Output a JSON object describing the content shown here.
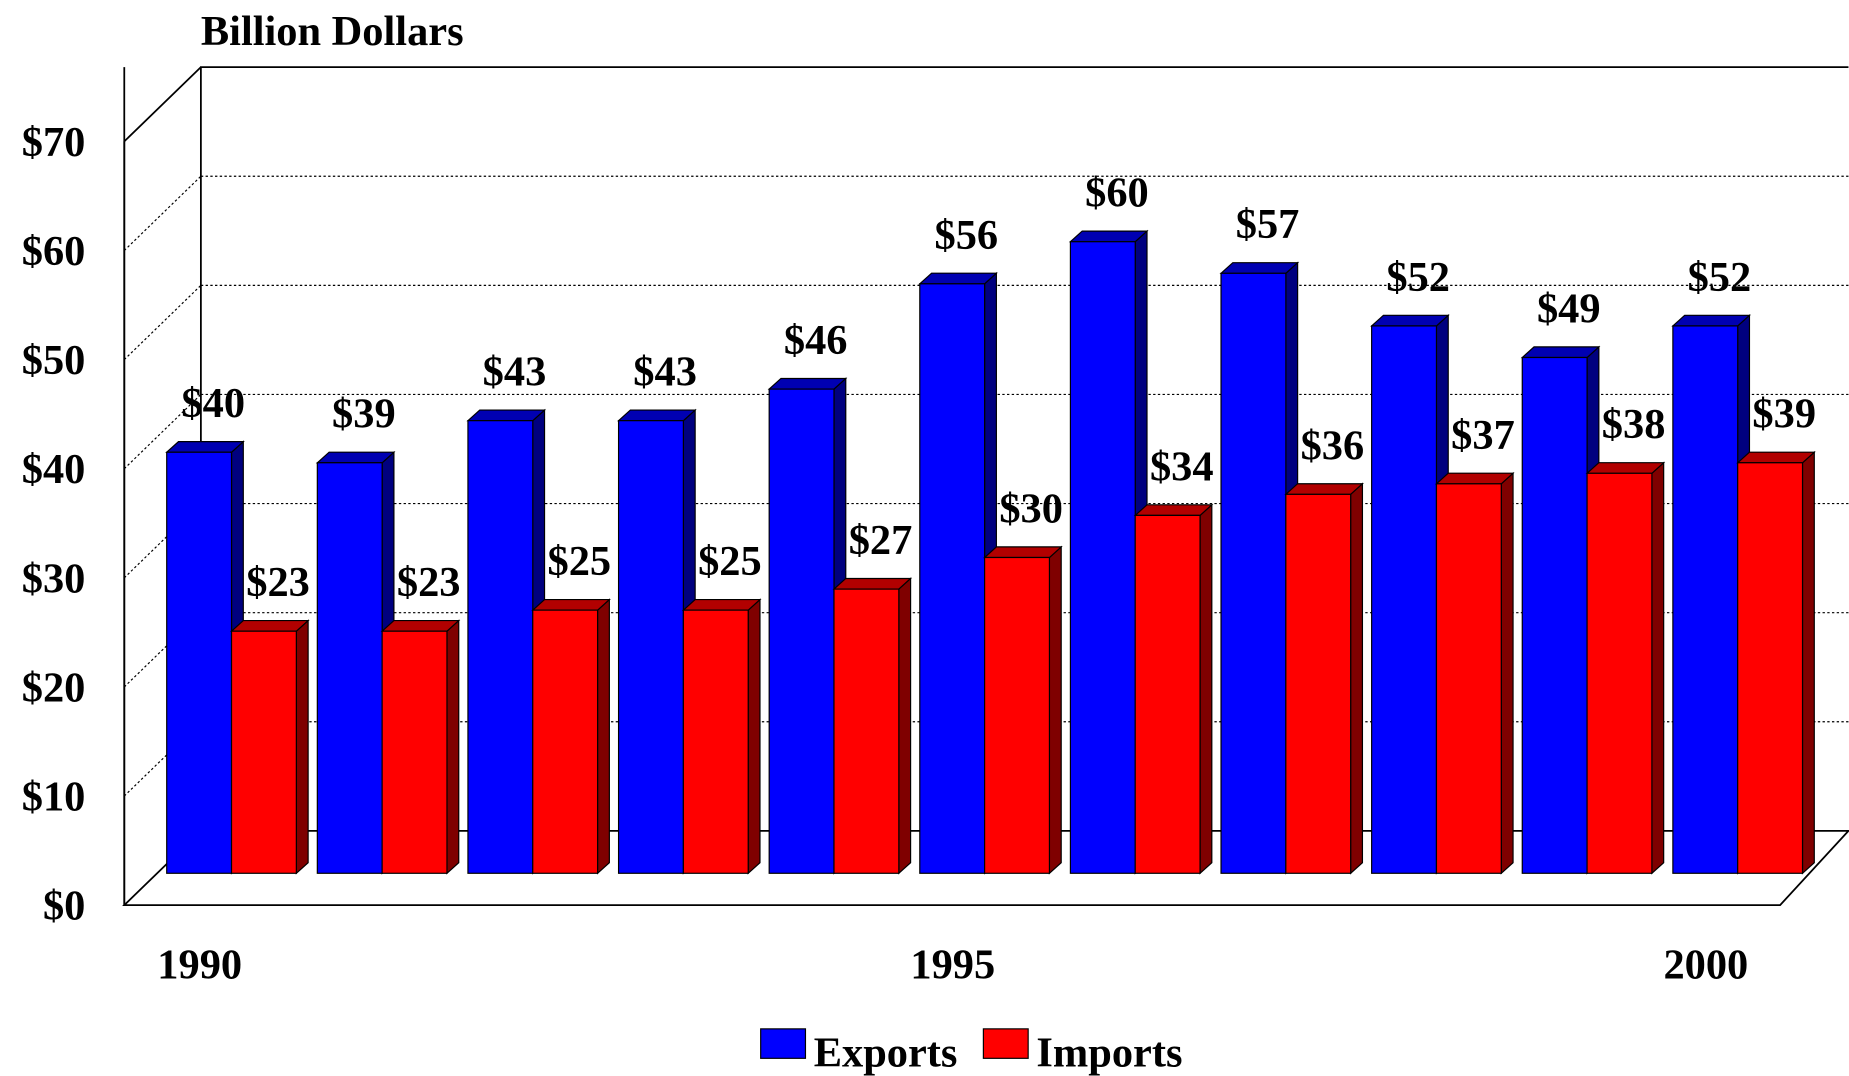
{
  "chart_data": {
    "type": "bar3d",
    "y_axis_label": "Billion Dollars",
    "categories": [
      "1990",
      null,
      null,
      null,
      null,
      "1995",
      null,
      null,
      null,
      null,
      "2000"
    ],
    "series": [
      {
        "name": "Exports",
        "color": "#0000ff",
        "values": [
          40,
          39,
          43,
          43,
          46,
          56,
          60,
          57,
          52,
          49,
          52
        ],
        "value_labels": [
          "$40",
          "$39",
          "$43",
          "$43",
          "$46",
          "$56",
          "$60",
          "$57",
          "$52",
          "$49",
          "$52"
        ]
      },
      {
        "name": "Imports",
        "color": "#ff0000",
        "values": [
          23,
          23,
          25,
          25,
          27,
          30,
          34,
          36,
          37,
          38,
          39
        ],
        "value_labels": [
          "$23",
          "$23",
          "$25",
          "$25",
          "$27",
          "$30",
          "$34",
          "$36",
          "$37",
          "$38",
          "$39"
        ]
      }
    ],
    "ylim": [
      0,
      70
    ],
    "yticks": [
      {
        "value": 0,
        "label": "$0"
      },
      {
        "value": 10,
        "label": "$10"
      },
      {
        "value": 20,
        "label": "$20"
      },
      {
        "value": 30,
        "label": "$30"
      },
      {
        "value": 40,
        "label": "$40"
      },
      {
        "value": 50,
        "label": "$50"
      },
      {
        "value": 60,
        "label": "$60"
      },
      {
        "value": 70,
        "label": "$70"
      }
    ],
    "grid": true,
    "legend": "bottom"
  }
}
